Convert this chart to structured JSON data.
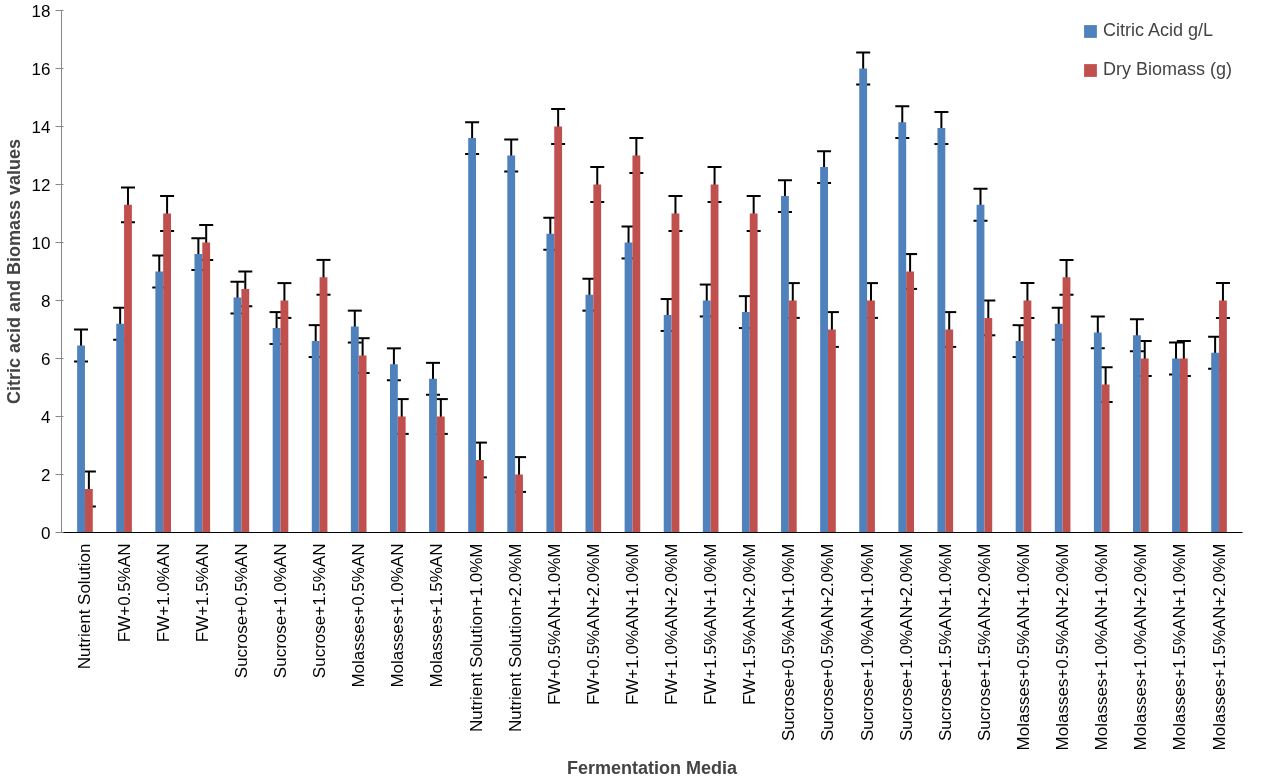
{
  "chart_data": {
    "type": "bar",
    "xlabel": "Fermentation Media",
    "ylabel": "Citric acid and Biomass values",
    "categories": [
      "Nutrient Solution",
      "FW+0.5%AN",
      "FW+1.0%AN",
      "FW+1.5%AN",
      "Sucrose+0.5%AN",
      "Sucrose+1.0%AN",
      "Sucrose+1.5%AN",
      "Molasses+0.5%AN",
      "Molasses+1.0%AN",
      "Molasses+1.5%AN",
      "Nutrient Solution+1.0%M",
      "Nutrient Solution+2.0%M",
      "FW+0.5%AN+1.0%M",
      "FW+0.5%AN+2.0%M",
      "FW+1.0%AN+1.0%M",
      "FW+1.0%AN+2.0%M",
      "FW+1.5%AN+1.0%M",
      "FW+1.5%AN+2.0%M",
      "Sucrose+0.5%AN+1.0%M",
      "Sucrose+0.5%AN+2.0%M",
      "Sucrose+1.0%AN+1.0%M",
      "Sucrose+1.0%AN+2.0%M",
      "Sucrose+1.5%AN+1.0%M",
      "Sucrose+1.5%AN+2.0%M",
      "Molasses+0.5%AN+1.0%M",
      "Molasses+0.5%AN+2.0%M",
      "Molasses+1.0%AN+1.0%M",
      "Molasses+1.0%AN+2.0%M",
      "Molasses+1.5%AN+1.0%M",
      "Molasses+1.5%AN+2.0%M"
    ],
    "series": [
      {
        "name": "Citric Acid g/L",
        "color": "#4f81bd",
        "values": [
          6.45,
          7.2,
          9.0,
          9.6,
          8.1,
          7.05,
          6.6,
          7.1,
          5.8,
          5.3,
          13.6,
          13.0,
          10.3,
          8.2,
          10.0,
          7.5,
          8.0,
          7.6,
          11.6,
          12.6,
          16.0,
          14.15,
          13.95,
          11.3,
          6.6,
          7.2,
          6.9,
          6.8,
          6.0,
          6.2
        ],
        "errors": [
          0.55,
          0.55,
          0.55,
          0.55,
          0.55,
          0.55,
          0.55,
          0.55,
          0.55,
          0.55,
          0.55,
          0.55,
          0.55,
          0.55,
          0.55,
          0.55,
          0.55,
          0.55,
          0.55,
          0.55,
          0.55,
          0.55,
          0.55,
          0.55,
          0.55,
          0.55,
          0.55,
          0.55,
          0.55,
          0.55
        ]
      },
      {
        "name": "Dry Biomass (g)",
        "color": "#c0504d",
        "values": [
          1.5,
          11.3,
          11.0,
          10.0,
          8.4,
          8.0,
          8.8,
          6.1,
          4.0,
          4.0,
          2.5,
          2.0,
          14.0,
          12.0,
          13.0,
          11.0,
          12.0,
          11.0,
          8.0,
          7.0,
          8.0,
          9.0,
          7.0,
          7.4,
          8.0,
          8.8,
          5.1,
          6.0,
          6.0,
          8.0
        ],
        "errors": [
          0.6,
          0.6,
          0.6,
          0.6,
          0.6,
          0.6,
          0.6,
          0.6,
          0.6,
          0.6,
          0.6,
          0.6,
          0.6,
          0.6,
          0.6,
          0.6,
          0.6,
          0.6,
          0.6,
          0.6,
          0.6,
          0.6,
          0.6,
          0.6,
          0.6,
          0.6,
          0.6,
          0.6,
          0.6,
          0.6
        ]
      }
    ],
    "ylim": [
      0,
      18
    ],
    "yticks": [
      0,
      2,
      4,
      6,
      8,
      10,
      12,
      14,
      16,
      18
    ],
    "grid": false,
    "legend": "top right"
  }
}
